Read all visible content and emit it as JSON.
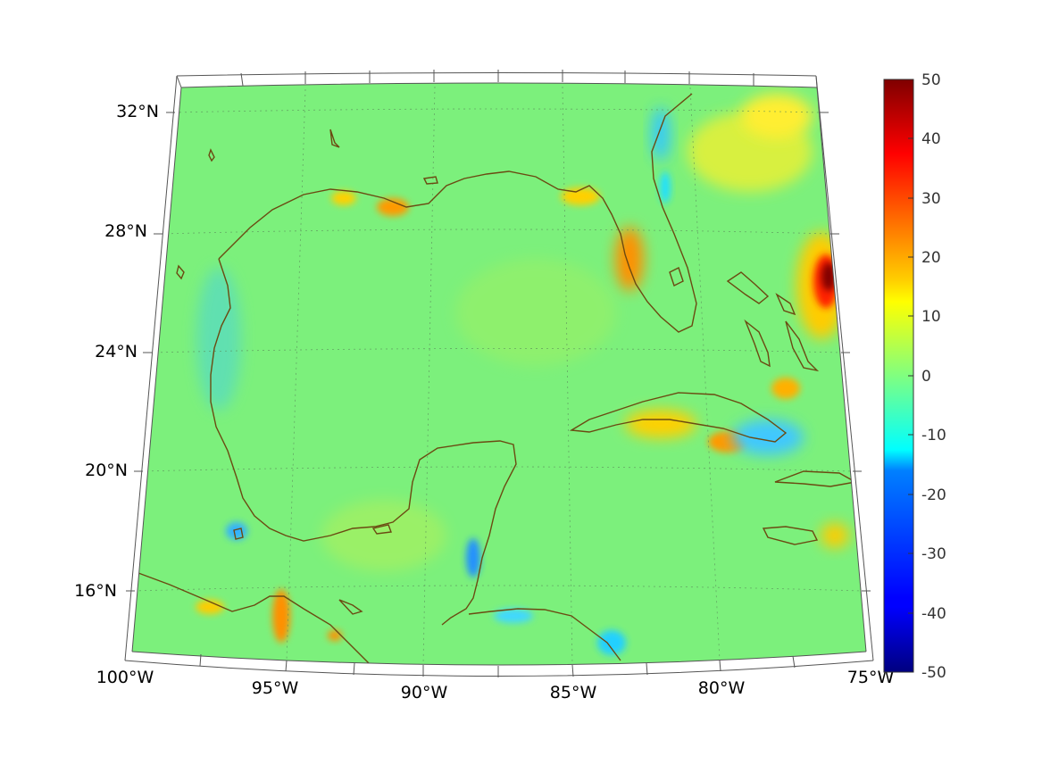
{
  "map": {
    "lat_labels": [
      "32°N",
      "28°N",
      "24°N",
      "20°N",
      "16°N"
    ],
    "lon_labels": [
      "100°W",
      "95°W",
      "90°W",
      "85°W",
      "80°W",
      "75°W"
    ],
    "extent": {
      "lon_min": -100,
      "lon_max": -75,
      "lat_min": 14,
      "lat_max": 32.5
    },
    "coastline_color": "#6b4a12",
    "background_value_color": "#7cf07c"
  },
  "colorbar": {
    "ticks": [
      "50",
      "40",
      "30",
      "20",
      "10",
      "0",
      "-10",
      "-20",
      "-30",
      "-40",
      "-50"
    ],
    "range": [
      -50,
      50
    ],
    "colormap": "jet"
  }
}
